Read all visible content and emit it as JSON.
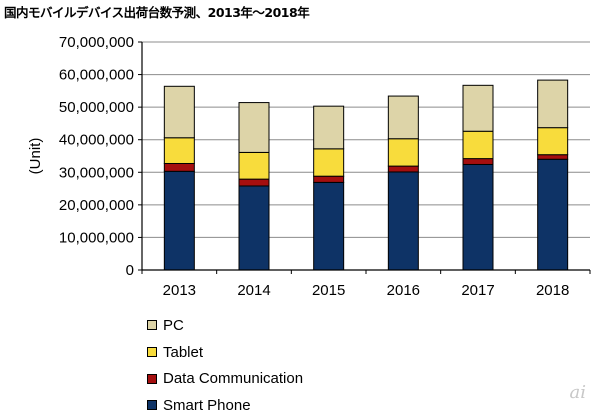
{
  "chart_data": {
    "type": "bar",
    "stacked": true,
    "title": "国内モバイルデバイス出荷台数予測、2013年～2018年",
    "xlabel": "",
    "ylabel": "(Unit)",
    "ylim": [
      0,
      70000000
    ],
    "grid": true,
    "legend_placement": "bottom-left",
    "yticks": [
      0,
      10000000,
      20000000,
      30000000,
      40000000,
      50000000,
      60000000,
      70000000
    ],
    "ytick_labels": [
      "0",
      "10,000,000",
      "20,000,000",
      "30,000,000",
      "40,000,000",
      "50,000,000",
      "60,000,000",
      "70,000,000"
    ],
    "categories": [
      "2013",
      "2014",
      "2015",
      "2016",
      "2017",
      "2018"
    ],
    "series": [
      {
        "name": "Smart Phone",
        "color": "#0e3366",
        "values": [
          30300000,
          25800000,
          26900000,
          30100000,
          32400000,
          34000000
        ]
      },
      {
        "name": "Data Communication",
        "color": "#a50f0f",
        "values": [
          2400000,
          2100000,
          1900000,
          1800000,
          1800000,
          1400000
        ]
      },
      {
        "name": "Tablet",
        "color": "#f8dc3c",
        "values": [
          7900000,
          8200000,
          8400000,
          8400000,
          8400000,
          8300000
        ]
      },
      {
        "name": "PC",
        "color": "#ddd4a8",
        "values": [
          15800000,
          15300000,
          13100000,
          13100000,
          14100000,
          14600000
        ]
      }
    ]
  },
  "legend_order": [
    "PC",
    "Tablet",
    "Data Communication",
    "Smart Phone"
  ],
  "logo_text": "ai"
}
